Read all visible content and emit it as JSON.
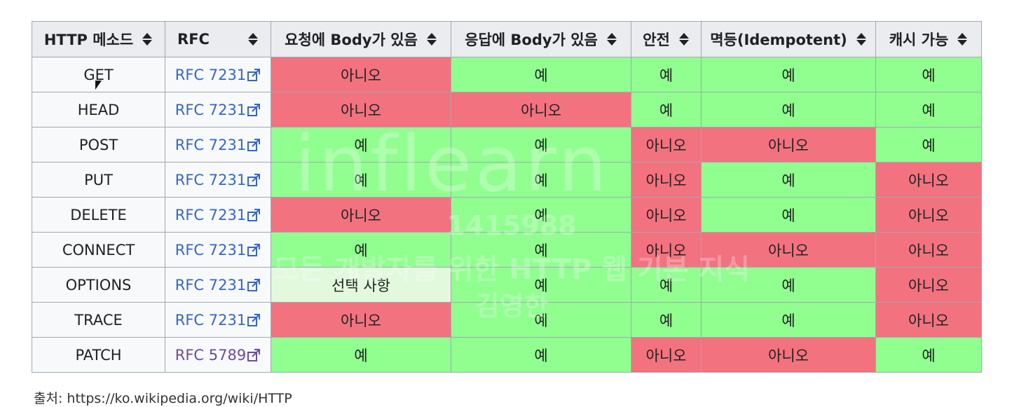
{
  "columns": [
    "HTTP 메소드",
    "RFC",
    "요청에 Body가 있음",
    "응답에 Body가 있음",
    "안전",
    "멱등(Idempotent)",
    "캐시 가능"
  ],
  "rows": [
    {
      "method": "GET",
      "rfc": "RFC 7231",
      "request_body": "아니오",
      "response_body": "예",
      "safe": "예",
      "idempotent": "예",
      "cacheable": "예"
    },
    {
      "method": "HEAD",
      "rfc": "RFC 7231",
      "request_body": "아니오",
      "response_body": "아니오",
      "safe": "예",
      "idempotent": "예",
      "cacheable": "예"
    },
    {
      "method": "POST",
      "rfc": "RFC 7231",
      "request_body": "예",
      "response_body": "예",
      "safe": "아니오",
      "idempotent": "아니오",
      "cacheable": "예"
    },
    {
      "method": "PUT",
      "rfc": "RFC 7231",
      "request_body": "예",
      "response_body": "예",
      "safe": "아니오",
      "idempotent": "예",
      "cacheable": "아니오"
    },
    {
      "method": "DELETE",
      "rfc": "RFC 7231",
      "request_body": "아니오",
      "response_body": "예",
      "safe": "아니오",
      "idempotent": "예",
      "cacheable": "아니오"
    },
    {
      "method": "CONNECT",
      "rfc": "RFC 7231",
      "request_body": "예",
      "response_body": "예",
      "safe": "아니오",
      "idempotent": "아니오",
      "cacheable": "아니오"
    },
    {
      "method": "OPTIONS",
      "rfc": "RFC 7231",
      "request_body": "선택 사항",
      "response_body": "예",
      "safe": "예",
      "idempotent": "예",
      "cacheable": "아니오"
    },
    {
      "method": "TRACE",
      "rfc": "RFC 7231",
      "request_body": "아니오",
      "response_body": "예",
      "safe": "예",
      "idempotent": "예",
      "cacheable": "아니오"
    },
    {
      "method": "PATCH",
      "rfc": "RFC 5789",
      "request_body": "예",
      "response_body": "예",
      "safe": "아니오",
      "idempotent": "아니오",
      "cacheable": "예"
    }
  ],
  "source": "출처: https://ko.wikipedia.org/wiki/HTTP",
  "watermark": {
    "logo": "inflearn",
    "id": "1415988",
    "course": "모든 개발자를 위한 HTTP 웹 기본 지식",
    "name": "김영한"
  },
  "colors": {
    "yes": "#90ff90",
    "no": "#f3727f",
    "optional": "#e2f9de",
    "header": "#eaecf0",
    "link": "#3366cc",
    "visited_link": "#6b4ba1"
  },
  "icons": {
    "sort": "sort-icon",
    "external_link": "external-link-icon",
    "cursor": "mouse-cursor-icon"
  }
}
